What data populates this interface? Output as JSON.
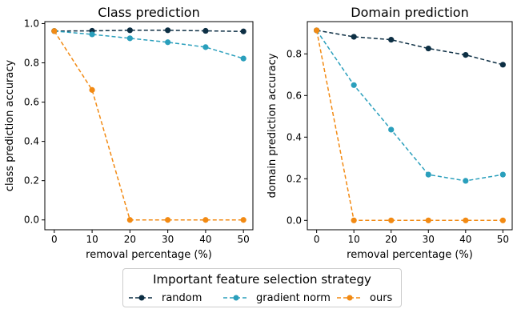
{
  "colors": {
    "random": "#0d2f44",
    "gradient_norm": "#2a9fbc",
    "ours": "#f28a13"
  },
  "chart_data": [
    {
      "type": "line",
      "title": "Class prediction",
      "xlabel": "removal percentage (%)",
      "ylabel": "class prediction accuracy",
      "x": [
        0,
        10,
        20,
        30,
        40,
        50
      ],
      "xticks": [
        "0",
        "10",
        "20",
        "30",
        "40",
        "50"
      ],
      "yticks": [
        "0.0",
        "0.2",
        "0.4",
        "0.6",
        "0.8",
        "1.0"
      ],
      "xlim": [
        -2.5,
        52.5
      ],
      "ylim": [
        -0.05,
        1.01
      ],
      "grid": false,
      "series": [
        {
          "name": "random",
          "values": [
            0.962,
            0.963,
            0.966,
            0.966,
            0.963,
            0.96
          ]
        },
        {
          "name": "gradient norm",
          "values": [
            0.962,
            0.945,
            0.925,
            0.905,
            0.88,
            0.822
          ]
        },
        {
          "name": "ours",
          "values": [
            0.962,
            0.662,
            0.0,
            0.0,
            0.0,
            0.0
          ]
        }
      ]
    },
    {
      "type": "line",
      "title": "Domain prediction",
      "xlabel": "removal percentage (%)",
      "ylabel": "domain prediction accuracy",
      "x": [
        0,
        10,
        20,
        30,
        40,
        50
      ],
      "xticks": [
        "0",
        "10",
        "20",
        "30",
        "40",
        "50"
      ],
      "yticks": [
        "0.0",
        "0.2",
        "0.4",
        "0.6",
        "0.8"
      ],
      "xlim": [
        -2.5,
        52.5
      ],
      "ylim": [
        -0.045,
        0.955
      ],
      "grid": false,
      "series": [
        {
          "name": "random",
          "values": [
            0.913,
            0.882,
            0.868,
            0.826,
            0.795,
            0.748
          ]
        },
        {
          "name": "gradient norm",
          "values": [
            0.913,
            0.65,
            0.436,
            0.22,
            0.19,
            0.22
          ]
        },
        {
          "name": "ours",
          "values": [
            0.913,
            0.0,
            0.0,
            0.0,
            0.0,
            0.0
          ]
        }
      ]
    }
  ],
  "legend": {
    "title": "Important feature selection strategy",
    "placement": "bottom-center",
    "items": [
      "random",
      "gradient norm",
      "ours"
    ]
  }
}
